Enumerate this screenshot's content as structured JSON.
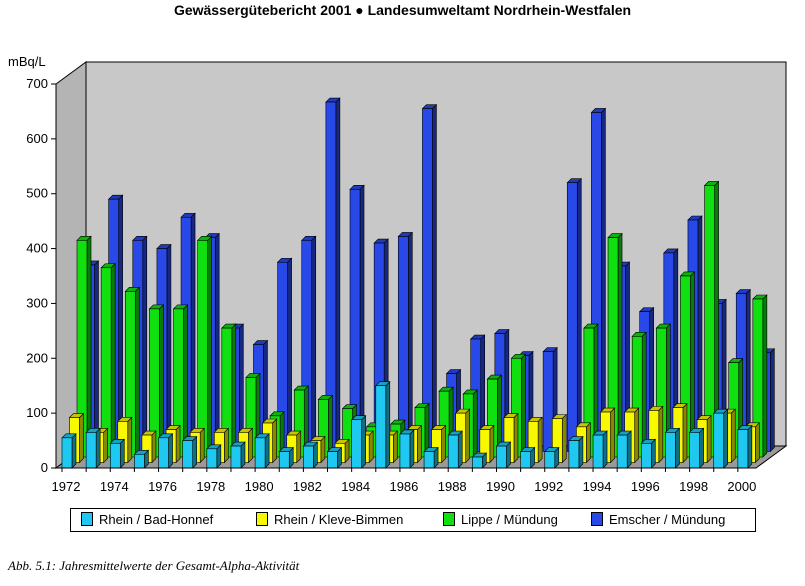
{
  "header": {
    "title": "Gewässergütebericht 2001 ● Landesumweltamt Nordrhein-Westfalen"
  },
  "caption": "Abb. 5.1: Jahresmittelwerte der Gesamt-Alpha-Aktivität",
  "chart_data": {
    "type": "bar",
    "ylabel": "mBq/L",
    "ylim": [
      0,
      700
    ],
    "yticks": [
      0,
      100,
      200,
      300,
      400,
      500,
      600,
      700
    ],
    "categories": [
      "1972",
      "1973",
      "1974",
      "1975",
      "1976",
      "1977",
      "1978",
      "1979",
      "1980",
      "1981",
      "1982",
      "1983",
      "1984",
      "1985",
      "1986",
      "1987",
      "1988",
      "1989",
      "1990",
      "1991",
      "1992",
      "1993",
      "1994",
      "1995",
      "1996",
      "1997",
      "1998",
      "1999",
      "2000"
    ],
    "xtick_labels": [
      "1972",
      "1974",
      "1976",
      "1978",
      "1980",
      "1982",
      "1984",
      "1986",
      "1988",
      "1990",
      "1992",
      "1994",
      "1996",
      "1998",
      "2000"
    ],
    "grid": false,
    "legend_position": "bottom",
    "series": [
      {
        "name": "Rhein / Bad-Honnef",
        "color": "#1ec8f0",
        "values": [
          55,
          65,
          45,
          25,
          55,
          50,
          35,
          40,
          55,
          30,
          40,
          30,
          88,
          150,
          62,
          30,
          60,
          20,
          40,
          30,
          30,
          50,
          60,
          60,
          45,
          65,
          65,
          100,
          70
        ]
      },
      {
        "name": "Rhein / Kleve-Bimmen",
        "color": "#f8f800",
        "values": [
          82,
          55,
          75,
          50,
          60,
          55,
          55,
          55,
          72,
          50,
          40,
          35,
          50,
          50,
          60,
          60,
          90,
          60,
          82,
          75,
          80,
          65,
          92,
          92,
          95,
          100,
          78,
          90,
          65
        ]
      },
      {
        "name": "Lippe / Mündung",
        "color": "#10e010",
        "values": [
          395,
          345,
          302,
          270,
          270,
          395,
          235,
          145,
          75,
          122,
          105,
          88,
          55,
          60,
          90,
          120,
          115,
          142,
          180,
          null,
          null,
          235,
          400,
          220,
          235,
          330,
          495,
          172,
          288
        ]
      },
      {
        "name": "Emscher / Mündung",
        "color": "#2848e8",
        "values": [
          340,
          460,
          385,
          370,
          427,
          390,
          225,
          195,
          345,
          385,
          637,
          478,
          380,
          392,
          625,
          142,
          205,
          215,
          175,
          182,
          490,
          618,
          338,
          255,
          362,
          422,
          270,
          288,
          180
        ]
      }
    ]
  }
}
